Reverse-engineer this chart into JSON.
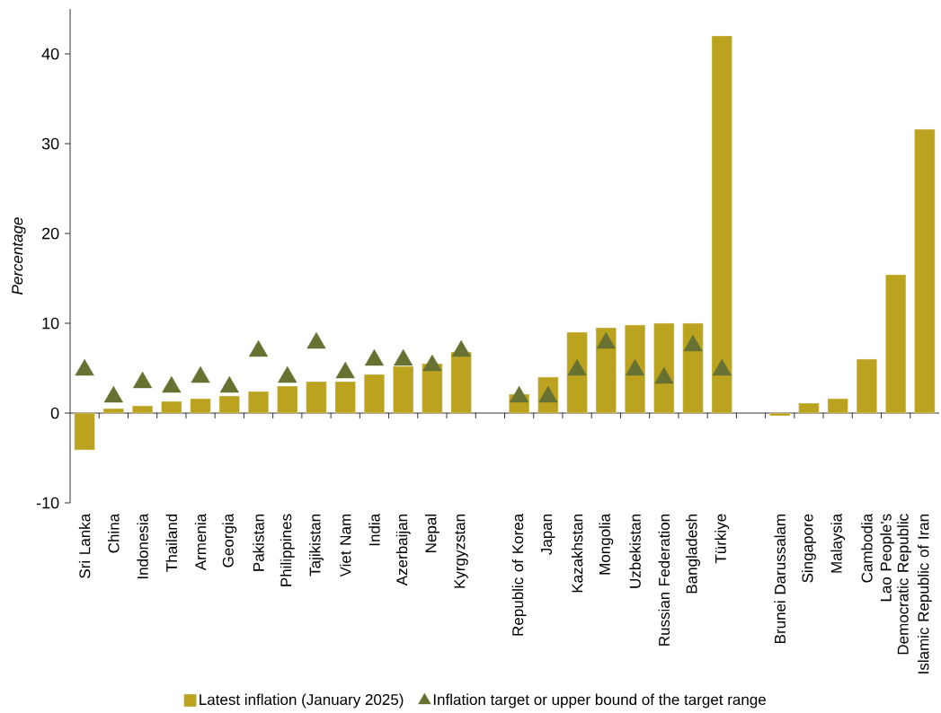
{
  "chart_data": {
    "type": "bar",
    "ylabel": "Percentage",
    "categories": [
      "Sri Lanka",
      "China",
      "Indonesia",
      "Thailand",
      "Armenia",
      "Georgia",
      "Pakistan",
      "Philippines",
      "Tajikistan",
      "Viet Nam",
      "India",
      "Azerbaijan",
      "Nepal",
      "Kyrgyzstan",
      null,
      "Republic of Korea",
      "Japan",
      "Kazakhstan",
      "Mongolia",
      "Uzbekistan",
      "Russian Federation",
      "Bangladesh",
      "Türkiye",
      null,
      "Brunei Darussalam",
      "Singapore",
      "Malaysia",
      "Cambodia",
      "Lao People's Democratic Republic",
      "Islamic Republic of Iran"
    ],
    "series": [
      {
        "name": "Latest inflation (January 2025)",
        "color": "#bba31f",
        "values": [
          -4.1,
          0.5,
          0.8,
          1.3,
          1.6,
          1.9,
          2.4,
          3.0,
          3.5,
          3.5,
          4.3,
          5.2,
          5.5,
          6.8,
          null,
          2.1,
          4.0,
          9.0,
          9.5,
          9.8,
          10.0,
          10.0,
          42.0,
          null,
          -0.3,
          1.1,
          1.6,
          6.0,
          15.4,
          31.6
        ]
      },
      {
        "name": "Inflation target or upper bound of the target range",
        "type": "scatter",
        "marker": "triangle",
        "color": "#667132",
        "values": [
          4.8,
          1.8,
          3.4,
          2.9,
          4.0,
          2.9,
          6.9,
          4.0,
          7.8,
          4.5,
          5.9,
          5.9,
          5.3,
          6.9,
          null,
          1.8,
          1.8,
          4.8,
          7.8,
          4.8,
          3.9,
          7.5,
          4.8,
          null,
          null,
          null,
          null,
          null,
          null,
          null
        ]
      }
    ],
    "ylim": [
      -10,
      45
    ],
    "yticks": [
      -10,
      0,
      10,
      20,
      30,
      40
    ],
    "legend": "bottom"
  }
}
